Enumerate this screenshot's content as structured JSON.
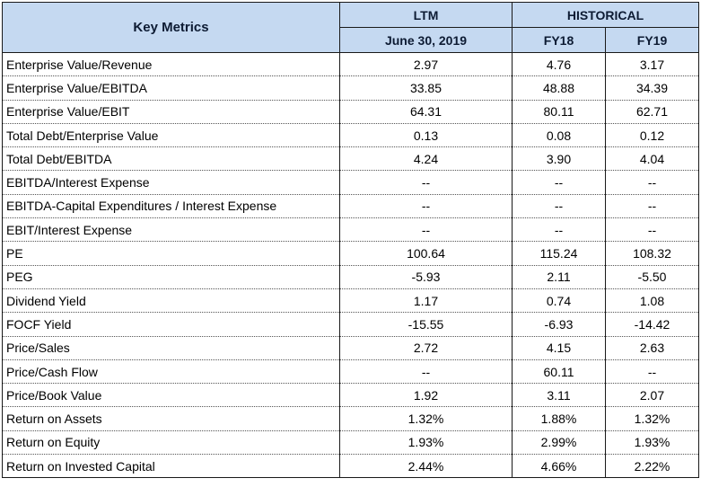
{
  "header": {
    "key_metrics": "Key Metrics",
    "ltm": "LTM",
    "historical": "HISTORICAL",
    "ltm_date": "June 30, 2019",
    "fy18": "FY18",
    "fy19": "FY19"
  },
  "rows": [
    {
      "label": "Enterprise Value/Revenue",
      "ltm": "2.97",
      "fy18": "4.76",
      "fy19": "3.17"
    },
    {
      "label": "Enterprise Value/EBITDA",
      "ltm": "33.85",
      "fy18": "48.88",
      "fy19": "34.39"
    },
    {
      "label": "Enterprise Value/EBIT",
      "ltm": "64.31",
      "fy18": "80.11",
      "fy19": "62.71"
    },
    {
      "label": "Total Debt/Enterprise Value",
      "ltm": "0.13",
      "fy18": "0.08",
      "fy19": "0.12"
    },
    {
      "label": "Total Debt/EBITDA",
      "ltm": "4.24",
      "fy18": "3.90",
      "fy19": "4.04"
    },
    {
      "label": "EBITDA/Interest Expense",
      "ltm": "--",
      "fy18": "--",
      "fy19": "--"
    },
    {
      "label": "EBITDA-Capital Expenditures / Interest Expense",
      "ltm": "--",
      "fy18": "--",
      "fy19": "--"
    },
    {
      "label": "EBIT/Interest Expense",
      "ltm": "--",
      "fy18": "--",
      "fy19": "--"
    },
    {
      "label": "PE",
      "ltm": "100.64",
      "fy18": "115.24",
      "fy19": "108.32"
    },
    {
      "label": "PEG",
      "ltm": "-5.93",
      "fy18": "2.11",
      "fy19": "-5.50"
    },
    {
      "label": "Dividend Yield",
      "ltm": "1.17",
      "fy18": "0.74",
      "fy19": "1.08"
    },
    {
      "label": "FOCF Yield",
      "ltm": "-15.55",
      "fy18": "-6.93",
      "fy19": "-14.42"
    },
    {
      "label": "Price/Sales",
      "ltm": "2.72",
      "fy18": "4.15",
      "fy19": "2.63"
    },
    {
      "label": "Price/Cash Flow",
      "ltm": "--",
      "fy18": "60.11",
      "fy19": "--"
    },
    {
      "label": "Price/Book Value",
      "ltm": "1.92",
      "fy18": "3.11",
      "fy19": "2.07"
    },
    {
      "label": "Return on Assets",
      "ltm": "1.32%",
      "fy18": "1.88%",
      "fy19": "1.32%"
    },
    {
      "label": "Return on Equity",
      "ltm": "1.93%",
      "fy18": "2.99%",
      "fy19": "1.93%"
    },
    {
      "label": "Return on Invested Capital",
      "ltm": "2.44%",
      "fy18": "4.66%",
      "fy19": "2.22%"
    }
  ]
}
